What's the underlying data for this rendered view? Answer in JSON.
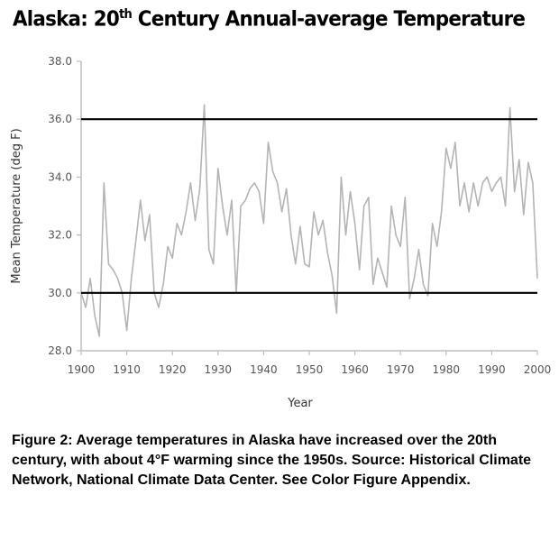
{
  "title": {
    "prefix": "Alaska: 20",
    "sup": "th",
    "suffix": " Century Annual-average Temperature"
  },
  "caption": "Figure 2: Average temperatures in Alaska have increased over the 20th century, with about 4°F warming since the 1950s. Source: Historical Climate Network, National Climate Data Center. See Color Figure Appendix.",
  "chart_data": {
    "type": "line",
    "xlabel": "Year",
    "ylabel": "Mean Temperature (deg F)",
    "xlim": [
      1900,
      2000
    ],
    "ylim": [
      28.0,
      38.0
    ],
    "x_ticks": [
      "1900",
      "1910",
      "1920",
      "1930",
      "1940",
      "1950",
      "1960",
      "1970",
      "1980",
      "1990",
      "2000"
    ],
    "y_ticks": [
      "28.0",
      "30.0",
      "32.0",
      "34.0",
      "36.0",
      "38.0"
    ],
    "reference_lines": [
      30.0,
      36.0
    ],
    "grid": false,
    "series_color": "#b4b4b4",
    "reference_color": "#000000",
    "x": [
      1900,
      1901,
      1902,
      1903,
      1904,
      1905,
      1906,
      1907,
      1908,
      1909,
      1910,
      1911,
      1912,
      1913,
      1914,
      1915,
      1916,
      1917,
      1918,
      1919,
      1920,
      1921,
      1922,
      1923,
      1924,
      1925,
      1926,
      1927,
      1928,
      1929,
      1930,
      1931,
      1932,
      1933,
      1934,
      1935,
      1936,
      1937,
      1938,
      1939,
      1940,
      1941,
      1942,
      1943,
      1944,
      1945,
      1946,
      1947,
      1948,
      1949,
      1950,
      1951,
      1952,
      1953,
      1954,
      1955,
      1956,
      1957,
      1958,
      1959,
      1960,
      1961,
      1962,
      1963,
      1964,
      1965,
      1966,
      1967,
      1968,
      1969,
      1970,
      1971,
      1972,
      1973,
      1974,
      1975,
      1976,
      1977,
      1978,
      1979,
      1980,
      1981,
      1982,
      1983,
      1984,
      1985,
      1986,
      1987,
      1988,
      1989,
      1990,
      1991,
      1992,
      1993,
      1994,
      1995,
      1996,
      1997,
      1998,
      1999,
      2000
    ],
    "y": [
      30.0,
      29.5,
      30.5,
      29.2,
      28.5,
      33.8,
      31.0,
      30.8,
      30.5,
      30.0,
      28.7,
      30.5,
      31.8,
      33.2,
      31.8,
      32.7,
      30.0,
      29.5,
      30.3,
      31.6,
      31.2,
      32.4,
      32.0,
      32.8,
      33.8,
      32.5,
      33.6,
      36.5,
      31.5,
      31.0,
      34.3,
      33.0,
      32.0,
      33.2,
      30.0,
      33.0,
      33.2,
      33.6,
      33.8,
      33.5,
      32.4,
      35.2,
      34.2,
      33.8,
      32.8,
      33.6,
      32.0,
      31.0,
      32.3,
      31.0,
      30.9,
      32.8,
      32.0,
      32.5,
      31.4,
      30.6,
      29.3,
      34.0,
      32.0,
      33.5,
      32.4,
      30.8,
      33.0,
      33.3,
      30.3,
      31.2,
      30.7,
      30.2,
      33.0,
      32.0,
      31.6,
      33.3,
      29.8,
      30.5,
      31.5,
      30.3,
      29.9,
      32.4,
      31.6,
      32.8,
      35.0,
      34.3,
      35.2,
      33.0,
      33.8,
      32.8,
      33.8,
      33.0,
      33.8,
      34.0,
      33.5,
      33.8,
      34.0,
      33.0,
      36.4,
      33.5,
      34.6,
      32.7,
      34.5,
      33.8,
      30.5
    ]
  }
}
